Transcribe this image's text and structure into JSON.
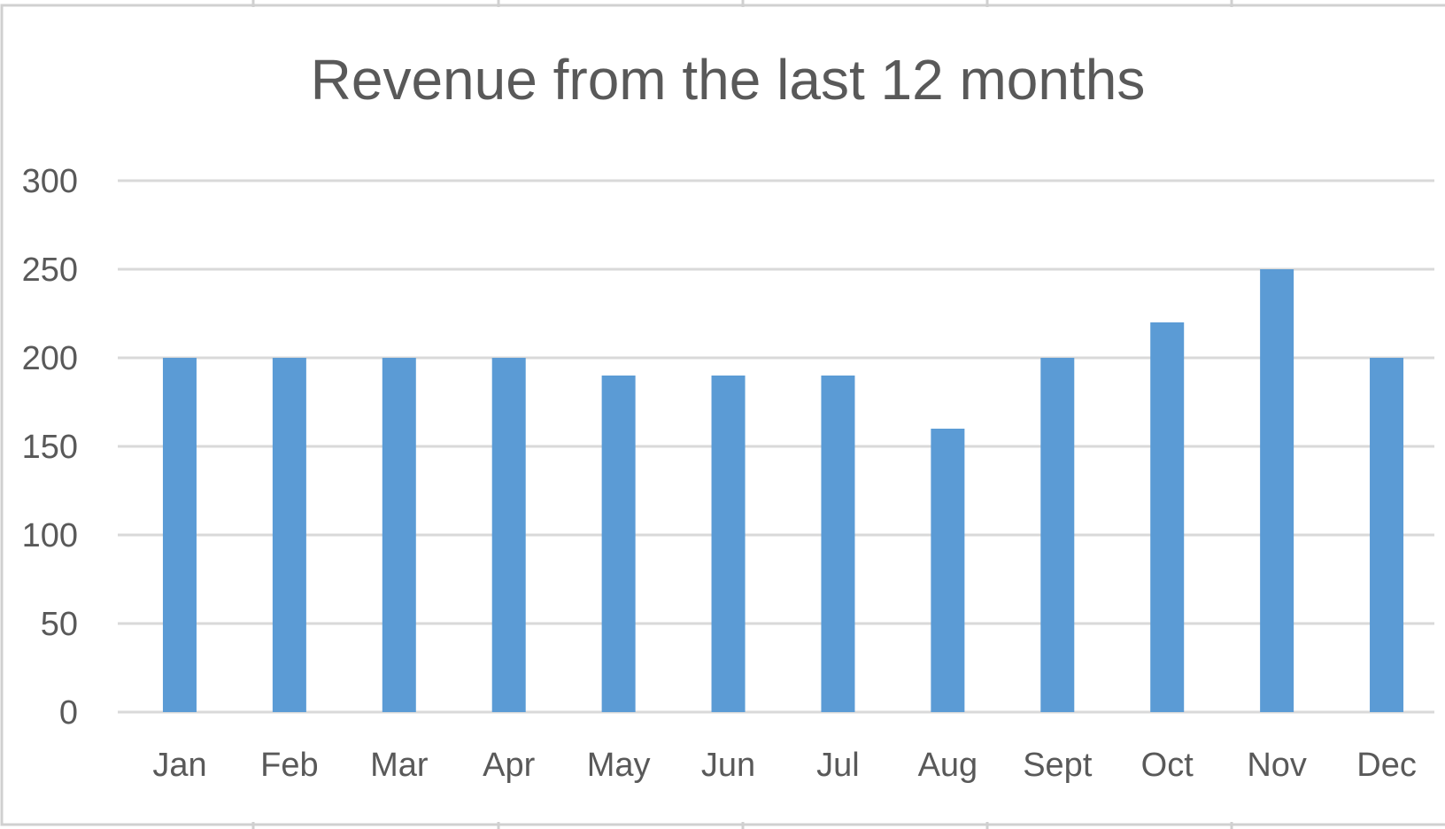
{
  "chart_data": {
    "type": "bar",
    "title": "Revenue from the last 12 months",
    "xlabel": "",
    "ylabel": "",
    "categories": [
      "Jan",
      "Feb",
      "Mar",
      "Apr",
      "May",
      "Jun",
      "Jul",
      "Aug",
      "Sept",
      "Oct",
      "Nov",
      "Dec"
    ],
    "values": [
      200,
      200,
      200,
      200,
      190,
      190,
      190,
      160,
      200,
      220,
      250,
      200
    ],
    "ylim": [
      0,
      300
    ],
    "yticks": [
      "0",
      "50",
      "100",
      "150",
      "200",
      "250",
      "300"
    ],
    "grid": true,
    "legend": "none",
    "bar_color": "#5b9bd5",
    "text_color": "#595959",
    "grid_color": "#d9d9d9"
  }
}
